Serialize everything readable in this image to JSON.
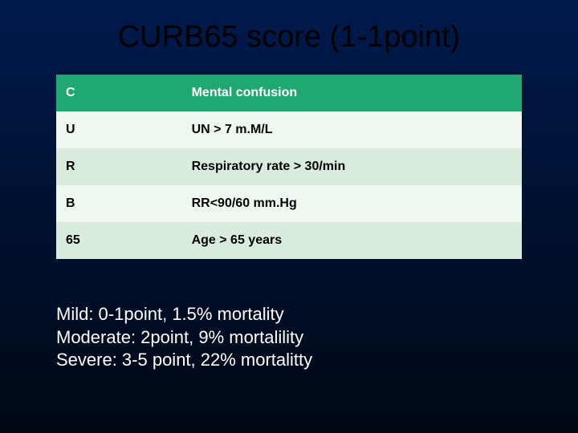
{
  "slide": {
    "title": "CURB65 score (1-1point)",
    "background_gradient_top": "#001a4d",
    "background_gradient_bottom": "#000814",
    "title_color": "#000000",
    "title_fontsize": 38
  },
  "table": {
    "type": "table",
    "header_bg": "#1fa86f",
    "header_text_color": "#ffffff",
    "row_odd_bg": "#eef7f0",
    "row_even_bg": "#d8ebdc",
    "cell_text_color": "#000000",
    "cell_fontsize": 16,
    "cell_fontweight": "bold",
    "col_widths": [
      "27%",
      "73%"
    ],
    "rows": [
      {
        "left": "C",
        "right": "Mental confusion",
        "style": "header"
      },
      {
        "left": "U",
        "right": "UN > 7 m.M/L",
        "style": "odd"
      },
      {
        "left": "R",
        "right": "Respiratory rate > 30/min",
        "style": "even"
      },
      {
        "left": "B",
        "right": "RR<90/60 mm.Hg",
        "style": "odd"
      },
      {
        "left": "65",
        "right": "Age > 65 years",
        "style": "even"
      }
    ]
  },
  "footer": {
    "text_color": "#ffffff",
    "fontsize": 22,
    "lines": [
      "Mild: 0-1point, 1.5% mortality",
      "Moderate: 2point, 9% mortalility",
      "Severe: 3-5 point, 22% mortalitty"
    ]
  }
}
